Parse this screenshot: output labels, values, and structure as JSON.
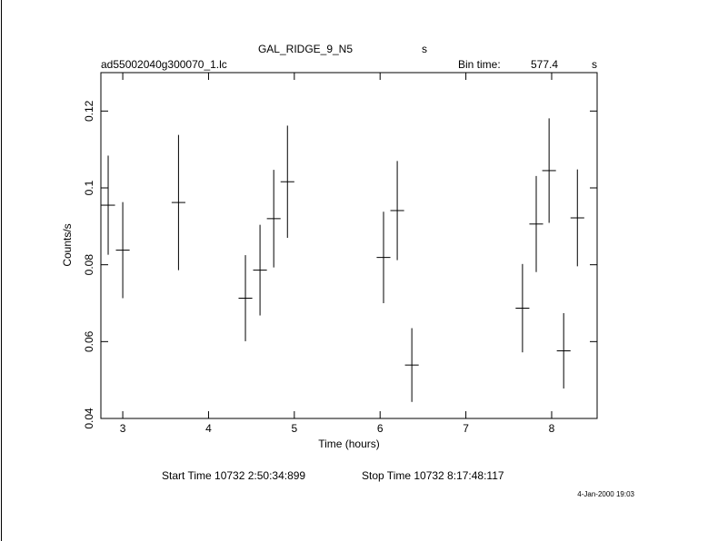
{
  "chart_data": {
    "type": "errorbar",
    "title": "GAL_RIDGE_9_N5",
    "title_unit": "s",
    "subtitle": "ad55002040g300070_1.lc",
    "bin_time_label": "Bin time:",
    "bin_time": 577.4,
    "bin_time_unit": "s",
    "xlabel": "Time (hours)",
    "ylabel": "Counts/s",
    "start_time": "Start Time 10732  2:50:34:899",
    "stop_time": "Stop Time 10732  8:17:48:117",
    "date": "4-Jan-2000 19:03",
    "xlim": [
      2.745,
      8.53
    ],
    "ylim": [
      0.04,
      0.13
    ],
    "xticks": [
      3,
      4,
      5,
      6,
      7,
      8
    ],
    "yticks": [
      0.04,
      0.06,
      0.08,
      0.1,
      0.12
    ],
    "xerr": 0.08,
    "color": "#000000",
    "x": [
      2.83,
      3.0,
      3.65,
      4.43,
      4.6,
      4.76,
      4.92,
      6.04,
      6.2,
      6.37,
      7.66,
      7.82,
      7.97,
      8.14,
      8.3
    ],
    "values": [
      0.0955,
      0.0838,
      0.0962,
      0.0713,
      0.0786,
      0.092,
      0.1016,
      0.0819,
      0.0941,
      0.0539,
      0.0687,
      0.0906,
      0.1045,
      0.0576,
      0.0922
    ],
    "errors": [
      0.0129,
      0.0125,
      0.0176,
      0.0112,
      0.0118,
      0.0127,
      0.0146,
      0.0119,
      0.0129,
      0.0096,
      0.0115,
      0.0125,
      0.0136,
      0.0098,
      0.0126
    ]
  }
}
